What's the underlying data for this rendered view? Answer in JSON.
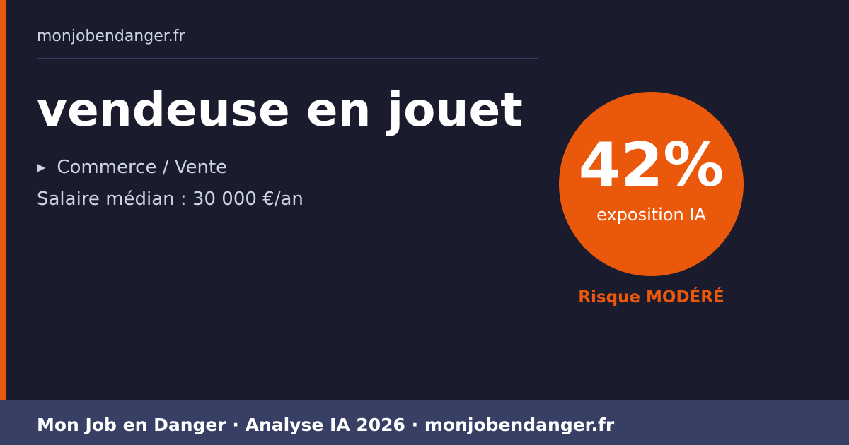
{
  "site": "monjobendanger.fr",
  "job_title": "vendeuse en jouet",
  "sector": {
    "icon": "triangle-right-icon",
    "label": "Commerce / Vente"
  },
  "salary": "Salaire médian : 30 000 €/an",
  "exposure": {
    "value_label": "42%",
    "value": 42,
    "caption": "exposition IA"
  },
  "risk_label": "Risque MODÉRÉ",
  "footer": "Mon Job en Danger · Analyse IA 2026 · monjobendanger.fr",
  "colors": {
    "background": "#1b1b2e",
    "accent": "#ea580c",
    "footer": "#374064",
    "muted_text": "#cbd5e1"
  }
}
